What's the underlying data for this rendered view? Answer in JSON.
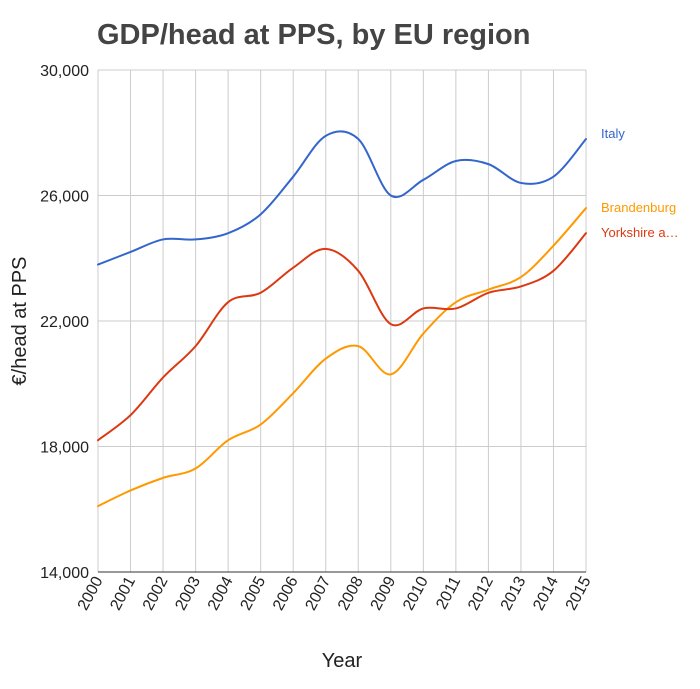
{
  "chart_data": {
    "type": "line",
    "title": "GDP/head at PPS, by EU region",
    "xlabel": "Year",
    "ylabel": "€/head at PPS",
    "x": [
      "2000",
      "2001",
      "2002",
      "2003",
      "2004",
      "2005",
      "2006",
      "2007",
      "2008",
      "2009",
      "2010",
      "2011",
      "2012",
      "2013",
      "2014",
      "2015"
    ],
    "ylim": [
      14000,
      30000
    ],
    "yticks": [
      14000,
      18000,
      22000,
      26000,
      30000
    ],
    "ytick_labels": [
      "14,000",
      "18,000",
      "22,000",
      "26,000",
      "30,000"
    ],
    "grid": true,
    "legend": "right, labels at line ends",
    "series": [
      {
        "name": "Italy",
        "color": "#3366cc",
        "values": [
          23800,
          24200,
          24600,
          24600,
          24800,
          25400,
          26600,
          27900,
          27800,
          26000,
          26500,
          27100,
          27000,
          26400,
          26600,
          27800
        ]
      },
      {
        "name": "Brandenburg",
        "color": "#ff9900",
        "values": [
          16100,
          16600,
          17000,
          17300,
          18200,
          18700,
          19700,
          20800,
          21200,
          20300,
          21600,
          22600,
          23000,
          23400,
          24400,
          25600
        ]
      },
      {
        "name": "Yorkshire a…",
        "color": "#dc3912",
        "values": [
          18200,
          19000,
          20200,
          21200,
          22600,
          22900,
          23700,
          24300,
          23600,
          21900,
          22400,
          22400,
          22900,
          23100,
          23600,
          24800
        ]
      }
    ]
  }
}
